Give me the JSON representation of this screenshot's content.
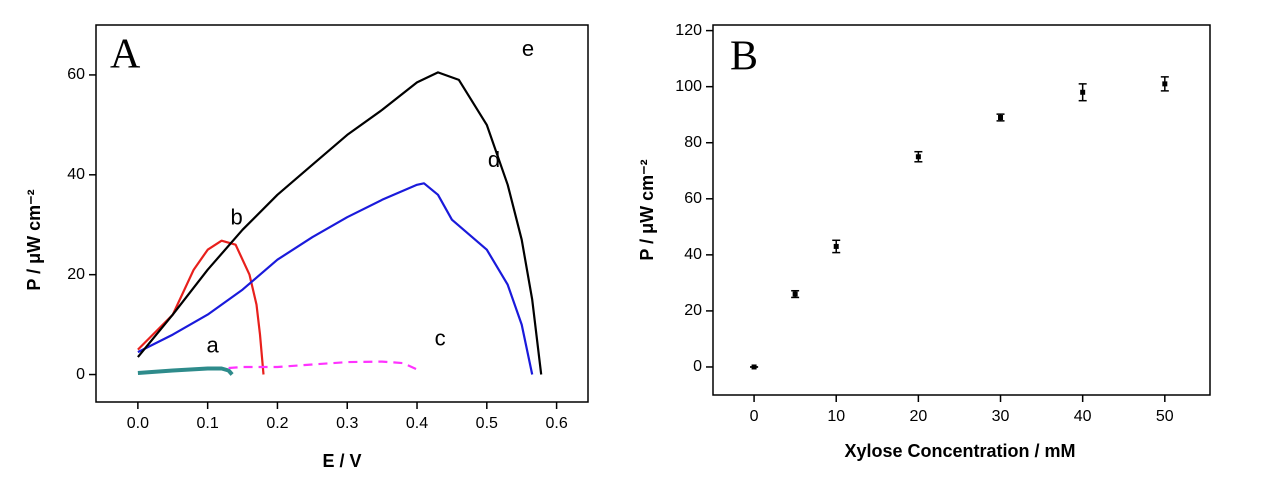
{
  "chart_data": [
    {
      "type": "line",
      "panel_label": "A",
      "xlabel": "E / V",
      "ylabel": "P / μW cm⁻²",
      "xlim": [
        -0.06,
        0.645
      ],
      "ylim": [
        -5.5,
        70
      ],
      "xticks": [
        {
          "value": 0,
          "label": "0.0"
        },
        0.1,
        0.2,
        0.3,
        0.4,
        0.5,
        0.6
      ],
      "yticks": [
        0,
        20,
        40,
        60
      ],
      "series": [
        {
          "name": "a",
          "color": "#2e8b8b",
          "line_width": 4,
          "x": [
            0,
            0.05,
            0.1,
            0.12,
            0.13,
            0.135
          ],
          "values": [
            0.3,
            0.8,
            1.2,
            1.2,
            0.8,
            0
          ]
        },
        {
          "name": "b",
          "color": "#e8201c",
          "x": [
            0,
            0.05,
            0.08,
            0.1,
            0.12,
            0.14,
            0.16,
            0.17,
            0.175,
            0.18
          ],
          "values": [
            5,
            12,
            21,
            25,
            26.8,
            26,
            20,
            14,
            8,
            0
          ]
        },
        {
          "name": "c",
          "color": "#ff33ff",
          "dashed": true,
          "x": [
            0.13,
            0.15,
            0.2,
            0.25,
            0.3,
            0.35,
            0.38,
            0.4
          ],
          "values": [
            1.3,
            1.5,
            1.5,
            2,
            2.5,
            2.6,
            2.3,
            1
          ]
        },
        {
          "name": "d",
          "color": "#1a1adb",
          "x": [
            0,
            0.05,
            0.1,
            0.15,
            0.2,
            0.25,
            0.3,
            0.35,
            0.4,
            0.41,
            0.43,
            0.45,
            0.5,
            0.53,
            0.55,
            0.565
          ],
          "values": [
            4.5,
            8,
            12,
            17,
            23,
            27.5,
            31.5,
            35,
            38,
            38.3,
            36,
            31,
            25,
            18,
            10,
            0
          ]
        },
        {
          "name": "e",
          "color": "#000000",
          "x": [
            0,
            0.05,
            0.1,
            0.15,
            0.2,
            0.25,
            0.3,
            0.35,
            0.4,
            0.43,
            0.46,
            0.5,
            0.53,
            0.55,
            0.565,
            0.578
          ],
          "values": [
            3.5,
            12,
            21,
            29,
            36,
            42,
            48,
            53,
            58.5,
            60.5,
            59,
            50,
            38,
            27,
            15,
            0
          ]
        }
      ]
    },
    {
      "type": "scatter",
      "panel_label": "B",
      "xlabel": "Xylose Concentration / mM",
      "ylabel": "P / μW cm⁻²",
      "xlim": [
        -5,
        55.5
      ],
      "ylim": [
        -10,
        122
      ],
      "xticks": [
        0,
        10,
        20,
        30,
        40,
        50
      ],
      "yticks": [
        0,
        20,
        40,
        60,
        80,
        100,
        120
      ],
      "series": [
        {
          "color": "#000000",
          "x": [
            0,
            5,
            10,
            20,
            30,
            40,
            50
          ],
          "values": [
            0,
            26,
            43,
            75,
            89,
            98,
            101
          ],
          "errors": [
            0,
            1.2,
            2.2,
            1.8,
            1.2,
            3,
            2.5
          ]
        }
      ]
    }
  ]
}
